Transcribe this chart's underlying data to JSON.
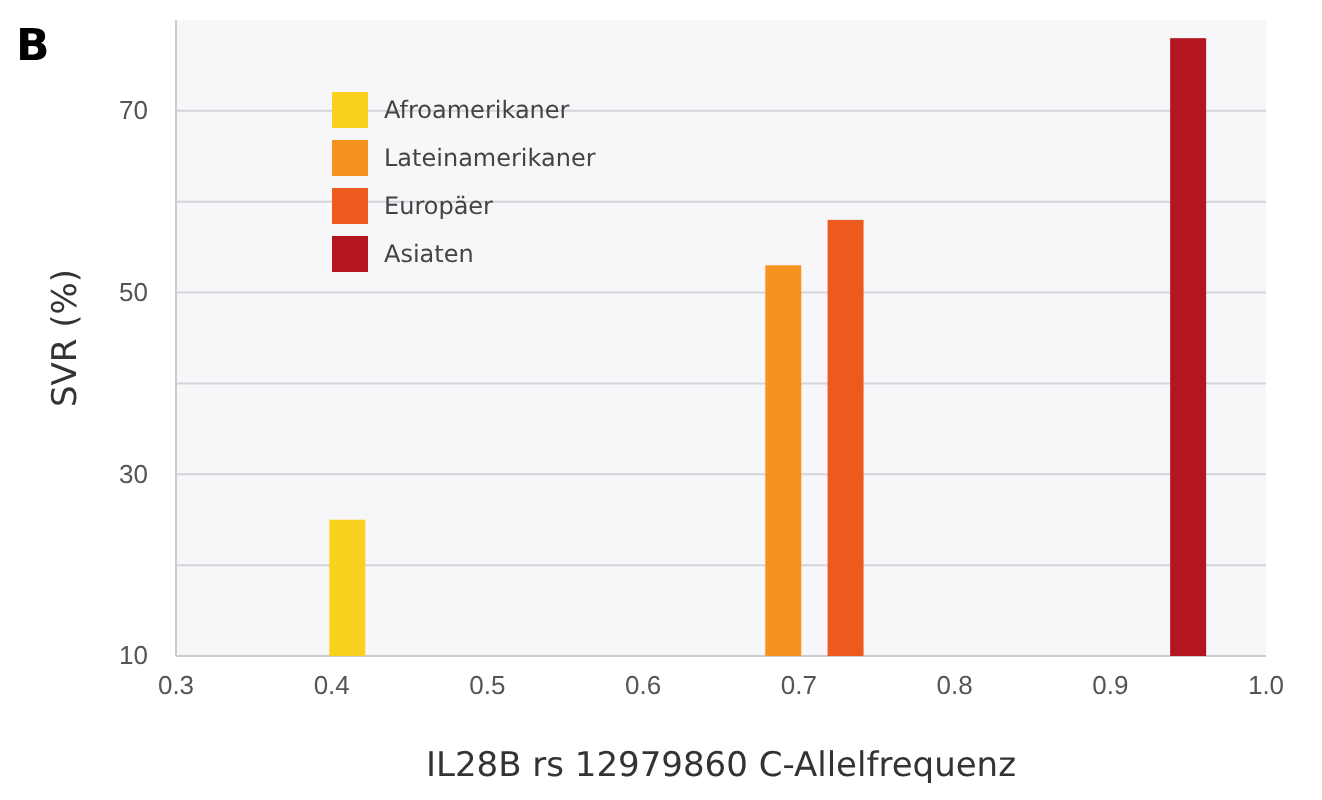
{
  "chart_data": {
    "type": "bar",
    "title": "B",
    "xlabel": "IL28B rs 12979860 C-Allelfrequenz",
    "ylabel": "SVR (%)",
    "series": [
      {
        "name": "Afroamerikaner",
        "color": "#f8d21e",
        "x": [
          0.41
        ],
        "values": [
          25
        ]
      },
      {
        "name": "Lateinamerikaner",
        "color": "#f6921e",
        "x": [
          0.69
        ],
        "values": [
          53
        ]
      },
      {
        "name": "Europäer",
        "color": "#ec5a1e",
        "x": [
          0.73
        ],
        "values": [
          58
        ]
      },
      {
        "name": "Asiaten",
        "color": "#b3161f",
        "x": [
          0.95
        ],
        "values": [
          78
        ]
      }
    ],
    "xlim": [
      0.3,
      1.0
    ],
    "xticks": [
      {
        "value": 0.3,
        "label": "0.3"
      },
      {
        "value": 0.4,
        "label": "0.4"
      },
      {
        "value": 0.5,
        "label": "0.5"
      },
      {
        "value": 0.6,
        "label": "0.6"
      },
      {
        "value": 0.7,
        "label": "0.7"
      },
      {
        "value": 0.8,
        "label": "0.8"
      },
      {
        "value": 0.9,
        "label": "0.9"
      },
      {
        "value": 1.0,
        "label": "1.0"
      }
    ],
    "ylim": [
      10,
      80
    ],
    "yticks": [
      10,
      {
        "value": 20,
        "label": null
      },
      30,
      {
        "value": 40,
        "label": null
      },
      50,
      {
        "value": 60,
        "label": null
      },
      70
    ],
    "grid": "y",
    "legend": "top left"
  }
}
